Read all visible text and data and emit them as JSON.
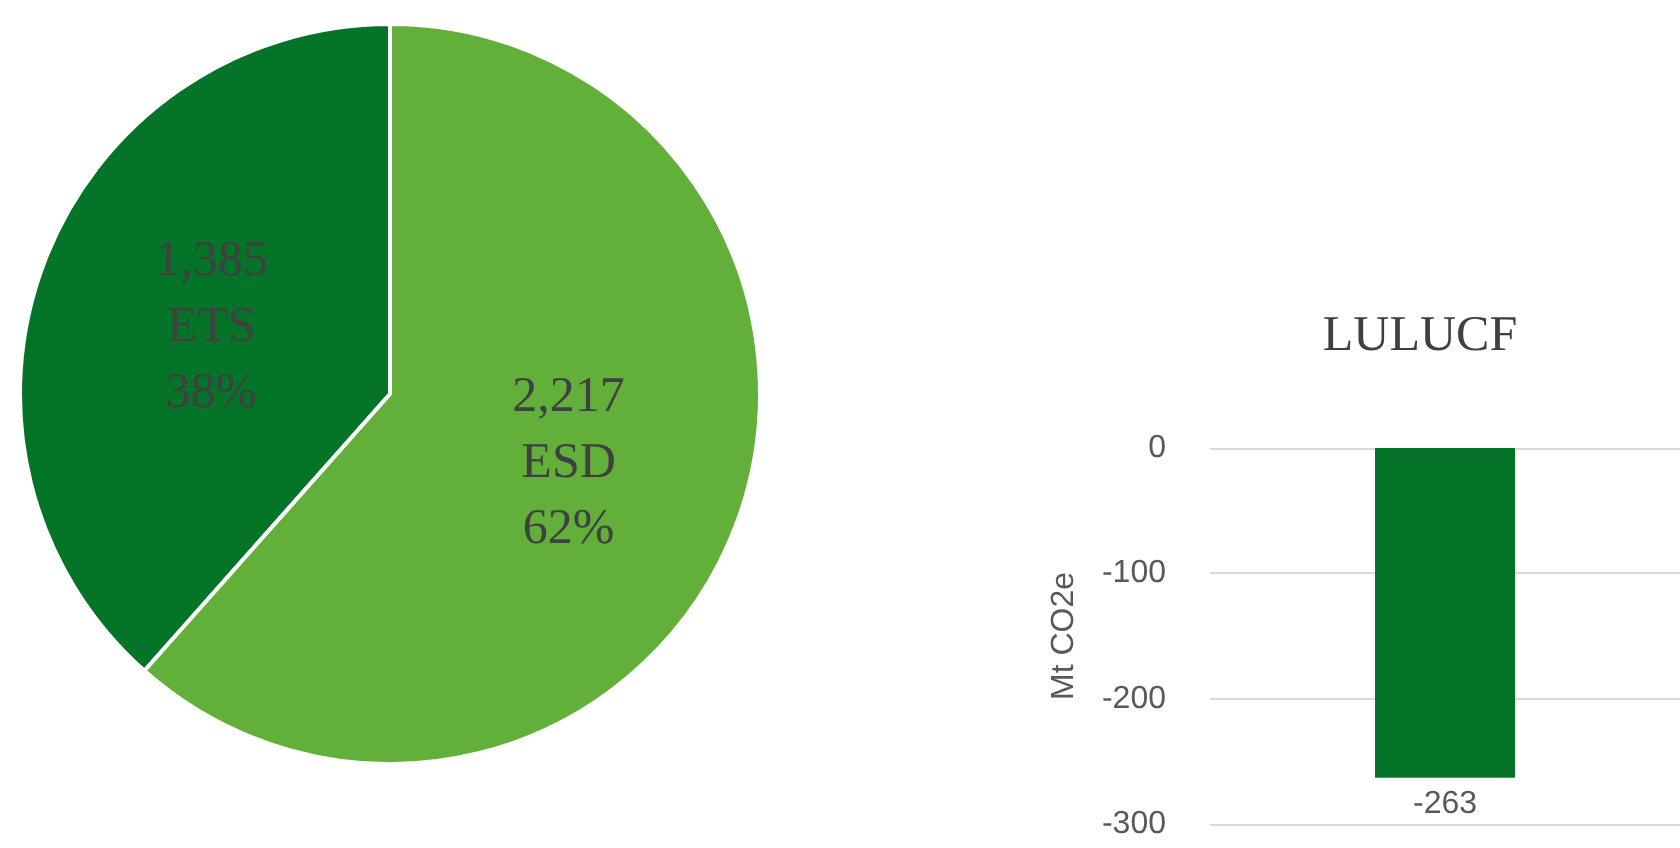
{
  "chart_data": [
    {
      "type": "pie",
      "categories": [
        "ETS",
        "ESD"
      ],
      "values": [
        1385,
        2217
      ],
      "colors": [
        "#037428",
        "#62b03a"
      ],
      "value_labels": [
        "1,385",
        "2,217"
      ],
      "annotations": [
        "38%",
        "62%"
      ]
    },
    {
      "type": "bar",
      "title": "LULUCF",
      "ylabel": "Mt CO2e",
      "categories": [
        null
      ],
      "values": [
        -263
      ],
      "color": "#037428",
      "ylim": [
        -300,
        0
      ],
      "yticks": [
        -300,
        -200,
        -100,
        0
      ],
      "grid": "y",
      "data_labels": true
    }
  ]
}
